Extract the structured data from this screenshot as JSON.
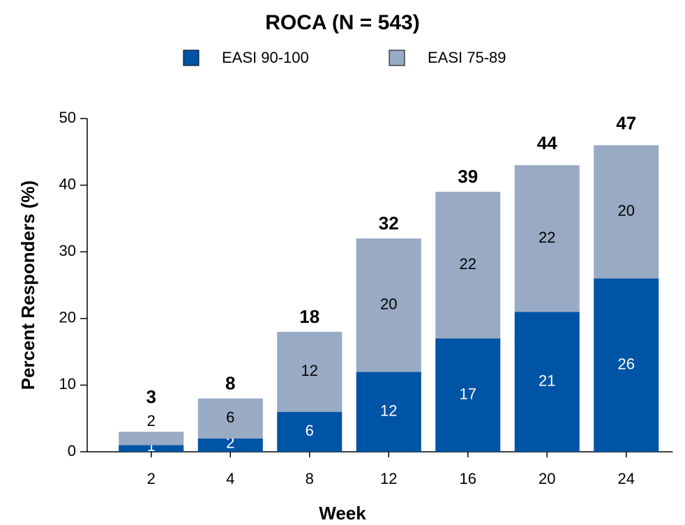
{
  "chart_data": {
    "type": "stacked_bar",
    "title": "ROCA (N = 543)",
    "x_label": "Week",
    "y_label": "Percent Responders (%)",
    "categories": [
      "2",
      "4",
      "8",
      "12",
      "16",
      "20",
      "24"
    ],
    "series": [
      {
        "name": "EASI 90-100",
        "color": "#0054a6",
        "label_color": "#ffffff",
        "values": [
          1,
          2,
          6,
          12,
          17,
          21,
          26
        ]
      },
      {
        "name": "EASI 75-89",
        "color": "#98aac4",
        "label_color": "#000000",
        "values": [
          2,
          6,
          12,
          20,
          22,
          22,
          20
        ]
      }
    ],
    "totals": [
      3,
      8,
      18,
      32,
      39,
      44,
      47
    ],
    "ylim": [
      0,
      50
    ],
    "yticks": [
      0,
      10,
      20,
      30,
      40,
      50
    ],
    "legend": "top"
  }
}
